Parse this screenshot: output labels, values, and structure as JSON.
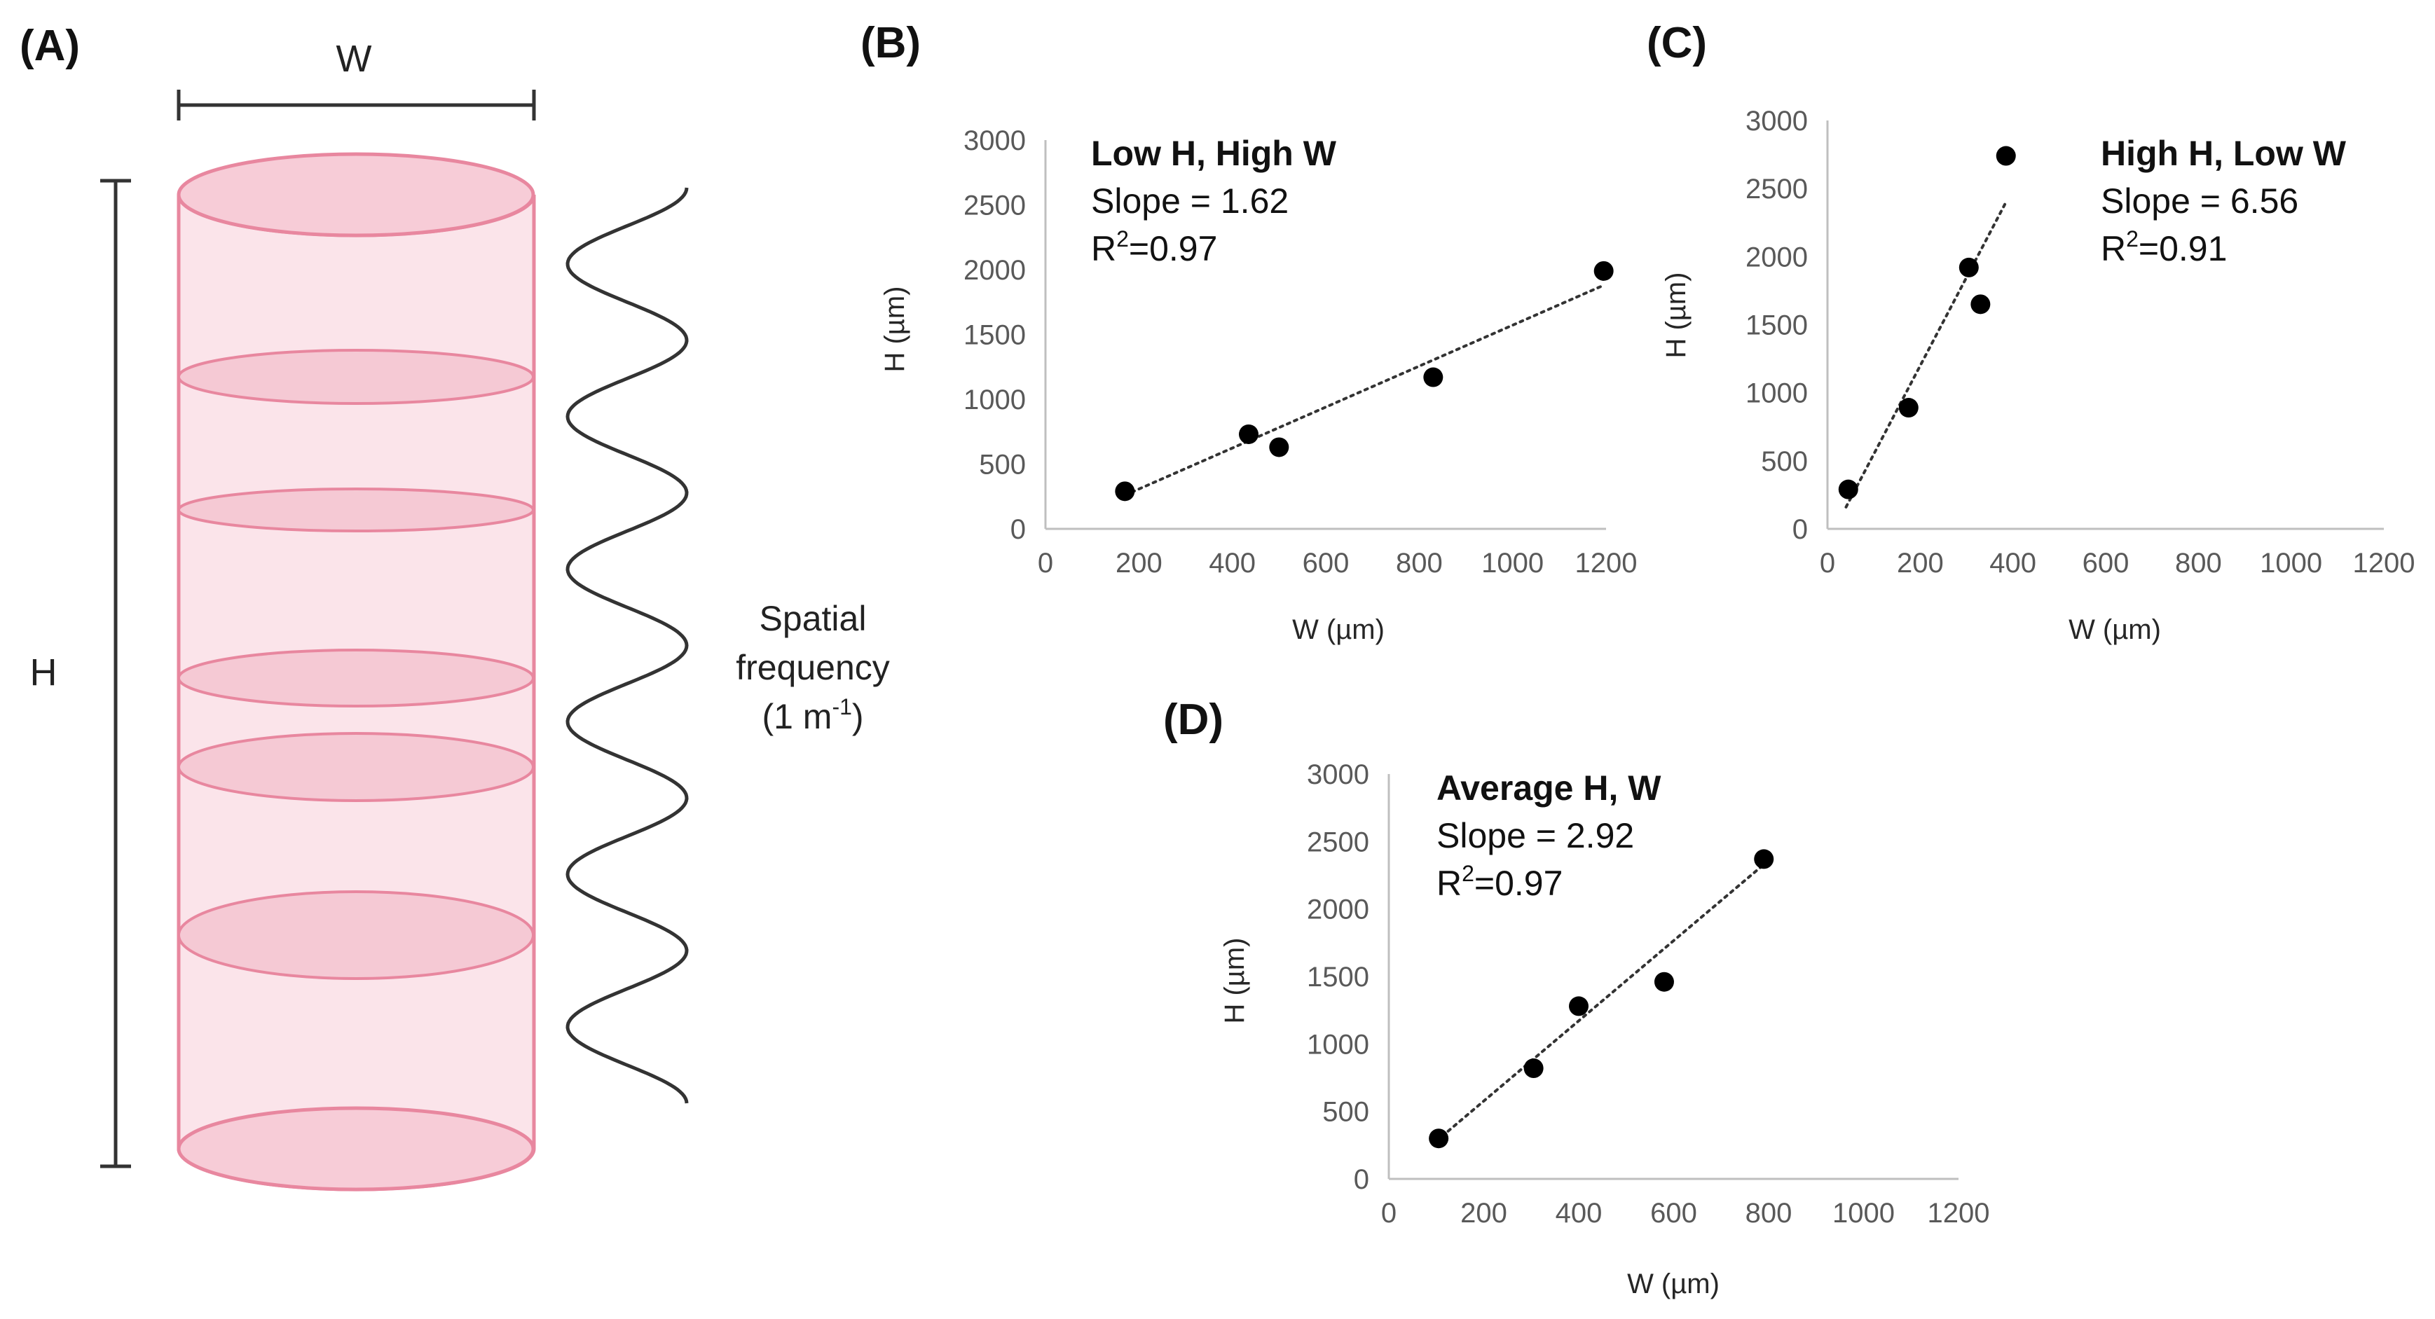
{
  "panelA": {
    "letter": "(A)",
    "width_label": "W",
    "height_label": "H",
    "freq_line1": "Spatial",
    "freq_line2": "frequency",
    "freq_line3_open": "(1 m",
    "freq_line3_sup": "-1",
    "freq_line3_close": ")",
    "colors": {
      "fill": "#fbe4ea",
      "edge": "#e8879f",
      "disc": "#f5c9d4",
      "wave": "#333333",
      "bar": "#333333"
    }
  },
  "chart_data": [
    {
      "id": "B",
      "letter": "(B)",
      "type": "scatter",
      "title": "Low H, High W",
      "slope_text": "Slope = 1.62",
      "r2_prefix": "R",
      "r2_sup": "2",
      "r2_value": "=0.97",
      "xlabel": "W (µm)",
      "ylabel": "H (µm)",
      "xlim": [
        0,
        1200
      ],
      "ylim": [
        0,
        3000
      ],
      "xticks": [
        0,
        200,
        400,
        600,
        800,
        1000,
        1200
      ],
      "yticks": [
        0,
        500,
        1000,
        1500,
        2000,
        2500,
        3000
      ],
      "x": [
        170,
        435,
        500,
        830,
        1195
      ],
      "y": [
        290,
        730,
        630,
        1170,
        1990
      ],
      "trend": {
        "x": [
          170,
          1195
        ],
        "y": [
          260,
          1880
        ]
      }
    },
    {
      "id": "C",
      "letter": "(C)",
      "type": "scatter",
      "title": "High H, Low W",
      "slope_text": "Slope = 6.56",
      "r2_prefix": "R",
      "r2_sup": "2",
      "r2_value": "=0.91",
      "xlabel": "W (µm)",
      "ylabel": "H (µm)",
      "xlim": [
        0,
        1200
      ],
      "ylim": [
        0,
        3000
      ],
      "xticks": [
        0,
        200,
        400,
        600,
        800,
        1000,
        1200
      ],
      "yticks": [
        0,
        500,
        1000,
        1500,
        2000,
        2500,
        3000
      ],
      "x": [
        45,
        175,
        305,
        330,
        385
      ],
      "y": [
        290,
        890,
        1920,
        1650,
        2740
      ],
      "trend": {
        "x": [
          40,
          385
        ],
        "y": [
          160,
          2400
        ]
      }
    },
    {
      "id": "D",
      "letter": "(D)",
      "type": "scatter",
      "title": "Average H, W",
      "slope_text": "Slope = 2.92",
      "r2_prefix": "R",
      "r2_sup": "2",
      "r2_value": "=0.97",
      "xlabel": "W (µm)",
      "ylabel": "H (µm)",
      "xlim": [
        0,
        1200
      ],
      "ylim": [
        0,
        3000
      ],
      "xticks": [
        0,
        200,
        400,
        600,
        800,
        1000,
        1200
      ],
      "yticks": [
        0,
        500,
        1000,
        1500,
        2000,
        2500,
        3000
      ],
      "x": [
        105,
        305,
        400,
        580,
        790
      ],
      "y": [
        300,
        820,
        1280,
        1460,
        2370
      ],
      "trend": {
        "x": [
          100,
          790
        ],
        "y": [
          280,
          2330
        ]
      }
    }
  ]
}
